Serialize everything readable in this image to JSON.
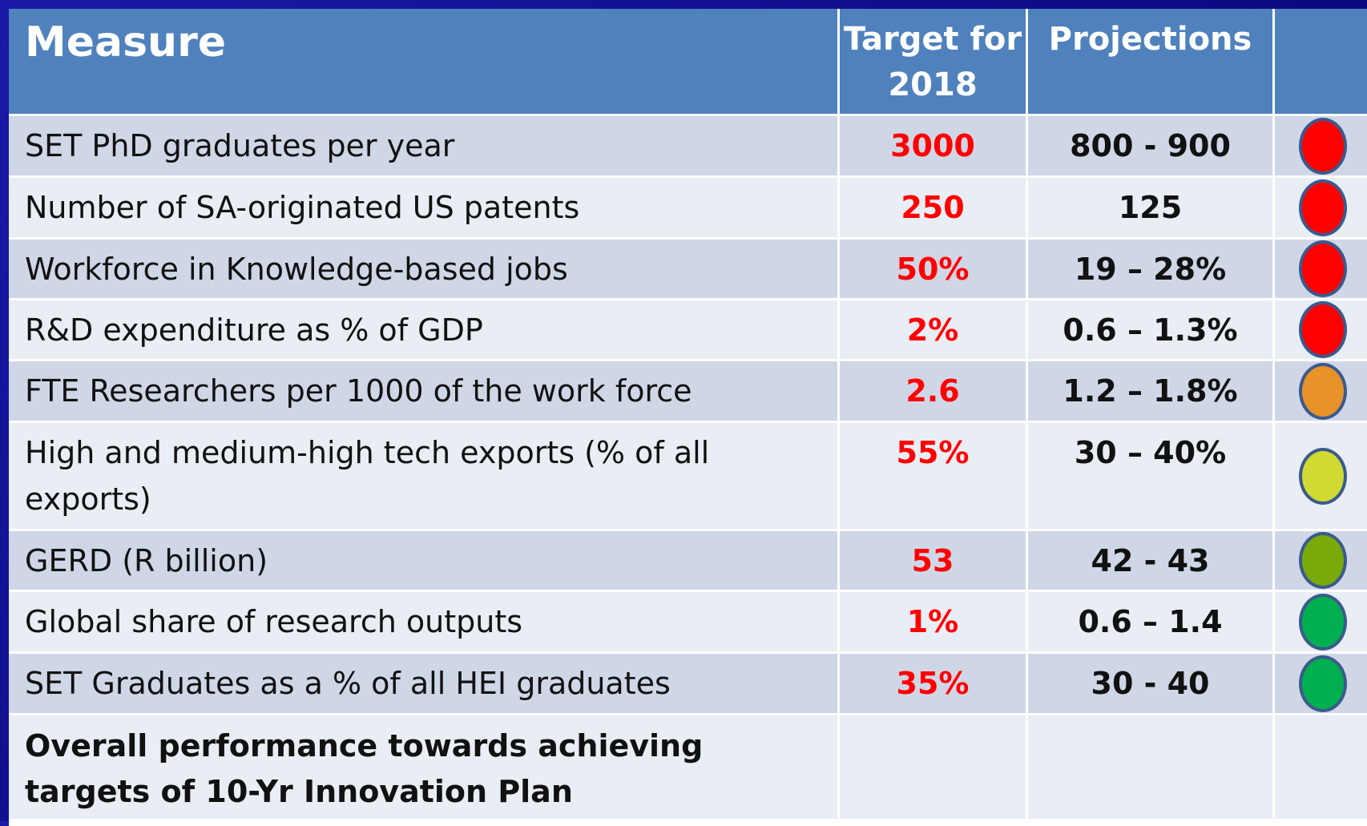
{
  "table": {
    "header": [
      "Measure",
      "Target for 2018",
      "Projections"
    ],
    "rows": [
      {
        "measure": "SET PhD graduates per year",
        "target": "3000",
        "projection": "800 - 900",
        "status_color": "#ff0000"
      },
      {
        "measure": "Number of SA-originated US patents",
        "target": "250",
        "projection": "125",
        "status_color": "#ff0000"
      },
      {
        "measure": "Workforce in Knowledge-based jobs",
        "target": "50%",
        "projection": "19 – 28%",
        "status_color": "#ff0000"
      },
      {
        "measure": "R&D expenditure  as % of GDP",
        "target": "2%",
        "projection": "0.6 – 1.3%",
        "status_color": "#ff0000"
      },
      {
        "measure": "FTE Researchers per 1000 of the work force",
        "target": "2.6",
        "projection": "1.2 – 1.8%",
        "status_color": "#e8922a"
      },
      {
        "measure": "High and medium-high tech exports (% of all exports)",
        "target": "55%",
        "projection": "30 – 40%",
        "status_color": "#d0da32"
      },
      {
        "measure": "GERD (R billion)",
        "target": "53",
        "projection": "42 - 43",
        "status_color": "#79aa0a"
      },
      {
        "measure": "Global share of research outputs",
        "target": "1%",
        "projection": "0.6 – 1.4",
        "status_color": "#00b050"
      },
      {
        "measure": "SET Graduates as a % of all HEI graduates",
        "target": "35%",
        "projection": "30 - 40",
        "status_color": "#00b050"
      }
    ],
    "footer": "Overall performance towards achieving  targets of 10-Yr  Innovation Plan"
  }
}
